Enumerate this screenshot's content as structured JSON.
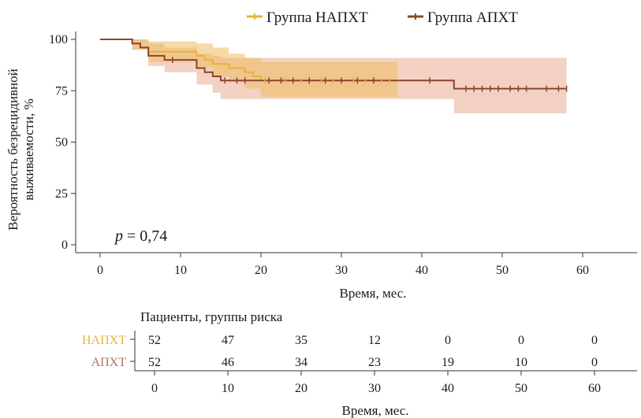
{
  "chart_data": {
    "type": "line",
    "subtype": "kaplan-meier",
    "xlabel": "Время, мес.",
    "ylabel_line1": "Вероятность безрецидивной",
    "ylabel_line2": "выживаемости, %",
    "xlim": [
      0,
      65
    ],
    "ylim": [
      0,
      100
    ],
    "x_ticks": [
      0,
      10,
      20,
      30,
      40,
      50,
      60
    ],
    "y_ticks": [
      0,
      25,
      50,
      75,
      100
    ],
    "legend_position": "top",
    "annotation": {
      "italic": "p",
      "text": " = 0,74"
    },
    "series": [
      {
        "name": "Группа НАПХТ",
        "color": "#e8b23a",
        "band_color": "#eebb60",
        "steps": [
          [
            0,
            100
          ],
          [
            4,
            100
          ],
          [
            4,
            98
          ],
          [
            5,
            98
          ],
          [
            5,
            96
          ],
          [
            6,
            96
          ],
          [
            6,
            94
          ],
          [
            12,
            94
          ],
          [
            12,
            92
          ],
          [
            13,
            92
          ],
          [
            13,
            90
          ],
          [
            14,
            90
          ],
          [
            14,
            88
          ],
          [
            16,
            88
          ],
          [
            16,
            86
          ],
          [
            18,
            86
          ],
          [
            18,
            84
          ],
          [
            19,
            84
          ],
          [
            19,
            82
          ],
          [
            20,
            82
          ],
          [
            20,
            80
          ],
          [
            37,
            80
          ]
        ],
        "ci_steps": [
          [
            0,
            100,
            100
          ],
          [
            4,
            100,
            95
          ],
          [
            6,
            99,
            89
          ],
          [
            12,
            98,
            86
          ],
          [
            14,
            96,
            82
          ],
          [
            16,
            93,
            79
          ],
          [
            18,
            91,
            76
          ],
          [
            20,
            89,
            72
          ],
          [
            37,
            89,
            72
          ]
        ],
        "censored": [
          20.5,
          23,
          25,
          27.5,
          29,
          31.5,
          33,
          35,
          36
        ]
      },
      {
        "name": "Группа АПХТ",
        "color": "#8c4530",
        "band_color": "#e8a587",
        "steps": [
          [
            0,
            100
          ],
          [
            4,
            100
          ],
          [
            4,
            98
          ],
          [
            5,
            98
          ],
          [
            5,
            96
          ],
          [
            6,
            96
          ],
          [
            6,
            92
          ],
          [
            8,
            92
          ],
          [
            8,
            90
          ],
          [
            12,
            90
          ],
          [
            12,
            86
          ],
          [
            13,
            86
          ],
          [
            13,
            84
          ],
          [
            14,
            84
          ],
          [
            14,
            82
          ],
          [
            15,
            82
          ],
          [
            15,
            80
          ],
          [
            44,
            80
          ],
          [
            44,
            76
          ],
          [
            58,
            76
          ]
        ],
        "ci_steps": [
          [
            0,
            100,
            100
          ],
          [
            4,
            100,
            95
          ],
          [
            6,
            98,
            87
          ],
          [
            8,
            96,
            84
          ],
          [
            12,
            93,
            78
          ],
          [
            14,
            92,
            74
          ],
          [
            15,
            91,
            71
          ],
          [
            37,
            91,
            71
          ],
          [
            44,
            91,
            64
          ],
          [
            58,
            91,
            64
          ]
        ],
        "censored": [
          9,
          15.5,
          17,
          18,
          21,
          22.5,
          24,
          26,
          28,
          30,
          32,
          34,
          41,
          45.5,
          46.5,
          47.5,
          48.5,
          49.5,
          51,
          52,
          53,
          55.5,
          57,
          58
        ]
      }
    ],
    "risk_table": {
      "title": "Пациенты, группы риска",
      "xlabel": "Время, мес.",
      "times": [
        0,
        10,
        20,
        30,
        40,
        50,
        60
      ],
      "rows": [
        {
          "label": "НАПХТ",
          "color": "#e8b23a",
          "values": [
            52,
            47,
            35,
            12,
            0,
            0,
            0
          ]
        },
        {
          "label": "АПХТ",
          "color": "#b3725c",
          "values": [
            52,
            46,
            34,
            23,
            19,
            10,
            0
          ]
        }
      ]
    }
  }
}
